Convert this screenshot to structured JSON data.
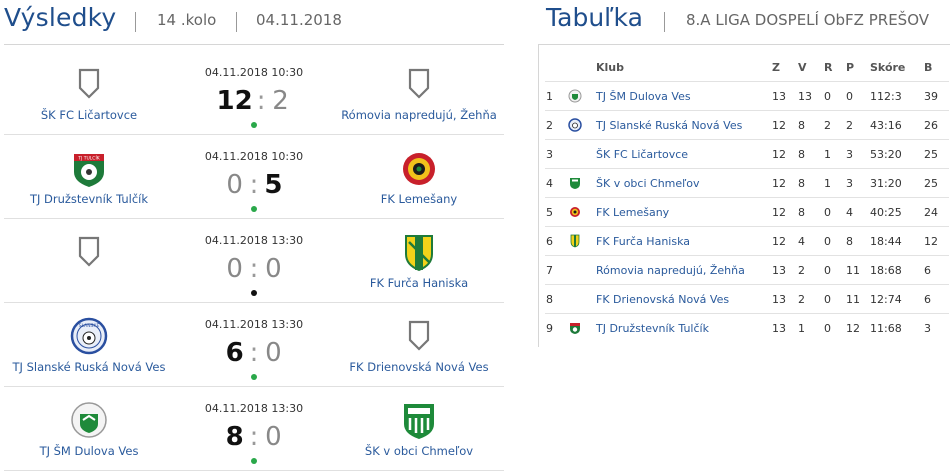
{
  "results": {
    "title": "Výsledky",
    "round": "14 .kolo",
    "date": "04.11.2018",
    "matches": [
      {
        "home": "ŠK FC Ličartovce",
        "away": "Rómovia napredujú, Žehňa",
        "datetime": "04.11.2018 10:30",
        "home_score": "12",
        "away_score": "2",
        "sep": ":"
      },
      {
        "home": "TJ Družstevník Tulčík",
        "away": "FK Lemešany",
        "datetime": "04.11.2018 10:30",
        "home_score": "0",
        "away_score": "5",
        "sep": ":"
      },
      {
        "home": "",
        "away": "FK Furča Haniska",
        "datetime": "04.11.2018 13:30",
        "home_score": "0",
        "away_score": "0",
        "sep": ":"
      },
      {
        "home": "TJ Slanské Ruská Nová Ves",
        "away": "FK Drienovská Nová Ves",
        "datetime": "04.11.2018 13:30",
        "home_score": "6",
        "away_score": "0",
        "sep": ":"
      },
      {
        "home": "TJ ŠM Dulova Ves",
        "away": "ŠK v obci Chmeľov",
        "datetime": "04.11.2018 13:30",
        "home_score": "8",
        "away_score": "0",
        "sep": ":"
      }
    ],
    "crest_labels": {
      "tulcik": "TJ TULCÍK",
      "slanske": "SLANSKÉ"
    }
  },
  "standings": {
    "title": "Tabuľka",
    "league": "8.A LIGA DOSPELÍ ObFZ PREŠOV",
    "headers": {
      "club": "Klub",
      "z": "Z",
      "v": "V",
      "r": "R",
      "p": "P",
      "score": "Skóre",
      "b": "B"
    },
    "rows": [
      {
        "pos": "1",
        "club": "TJ ŠM Dulova Ves",
        "z": "13",
        "v": "13",
        "r": "0",
        "p": "0",
        "score": "112:3",
        "b": "39"
      },
      {
        "pos": "2",
        "club": "TJ Slanské Ruská Nová Ves",
        "z": "12",
        "v": "8",
        "r": "2",
        "p": "2",
        "score": "43:16",
        "b": "26"
      },
      {
        "pos": "3",
        "club": "ŠK FC Ličartovce",
        "z": "12",
        "v": "8",
        "r": "1",
        "p": "3",
        "score": "53:20",
        "b": "25"
      },
      {
        "pos": "4",
        "club": "ŠK v obci Chmeľov",
        "z": "12",
        "v": "8",
        "r": "1",
        "p": "3",
        "score": "31:20",
        "b": "25"
      },
      {
        "pos": "5",
        "club": "FK Lemešany",
        "z": "12",
        "v": "8",
        "r": "0",
        "p": "4",
        "score": "40:25",
        "b": "24"
      },
      {
        "pos": "6",
        "club": "FK Furča Haniska",
        "z": "12",
        "v": "4",
        "r": "0",
        "p": "8",
        "score": "18:44",
        "b": "12"
      },
      {
        "pos": "7",
        "club": "Rómovia napredujú, Žehňa",
        "z": "13",
        "v": "2",
        "r": "0",
        "p": "11",
        "score": "18:68",
        "b": "6"
      },
      {
        "pos": "8",
        "club": "FK Drienovská Nová Ves",
        "z": "13",
        "v": "2",
        "r": "0",
        "p": "11",
        "score": "12:74",
        "b": "6"
      },
      {
        "pos": "9",
        "club": "TJ Družstevník Tulčík",
        "z": "13",
        "v": "1",
        "r": "0",
        "p": "12",
        "score": "11:68",
        "b": "3"
      }
    ]
  },
  "colors": {
    "accent": "#1f4e8c",
    "link": "#2a5a9c",
    "status_green": "#2aa84a",
    "status_black": "#111111"
  }
}
